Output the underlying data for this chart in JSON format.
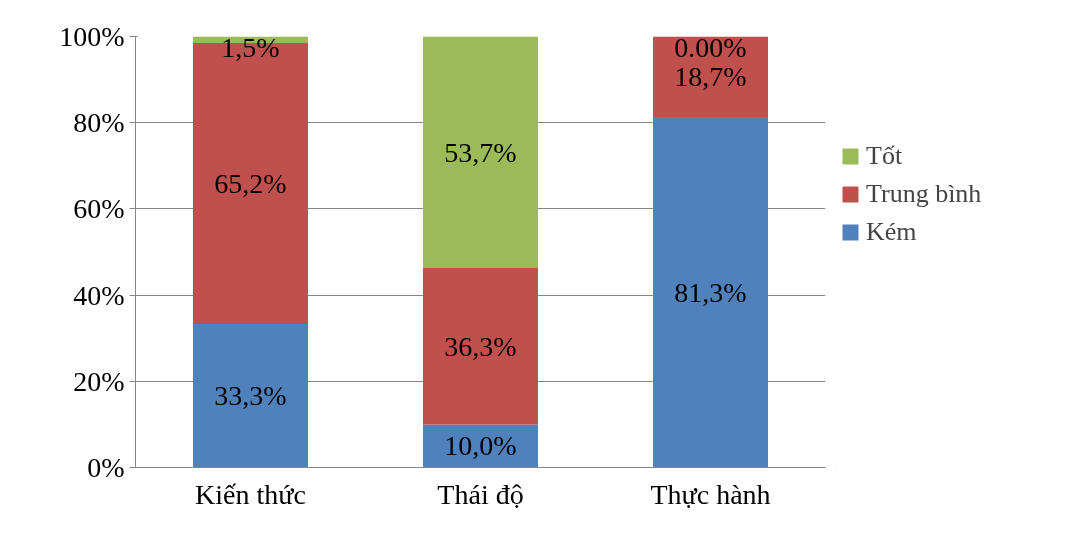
{
  "chart_data": {
    "type": "bar",
    "stacked": true,
    "categories": [
      "Kiến thức",
      "Thái độ",
      "Thực hành"
    ],
    "series": [
      {
        "name": "Kém",
        "color": "#4f81bd",
        "values": [
          33.3,
          10.0,
          81.3
        ],
        "value_labels": [
          "33,3%",
          "10,0%",
          "81,3%"
        ]
      },
      {
        "name": "Trung bình",
        "color": "#c0504d",
        "values": [
          65.2,
          36.3,
          18.7
        ],
        "value_labels": [
          "65,2%",
          "36,3%",
          "18,7%"
        ]
      },
      {
        "name": "Tốt",
        "color": "#9bbb59",
        "values": [
          1.5,
          53.7,
          0.0
        ],
        "value_labels": [
          "1,5%",
          "53,7%",
          "0.00%"
        ]
      }
    ],
    "ylim": [
      0,
      100
    ],
    "yticks": [
      {
        "value": 0,
        "label": "0%"
      },
      {
        "value": 20,
        "label": "20%"
      },
      {
        "value": 40,
        "label": "40%"
      },
      {
        "value": 60,
        "label": "60%"
      },
      {
        "value": 80,
        "label": "80%"
      },
      {
        "value": 100,
        "label": "100%"
      }
    ],
    "grid": "y",
    "legend": "right"
  }
}
